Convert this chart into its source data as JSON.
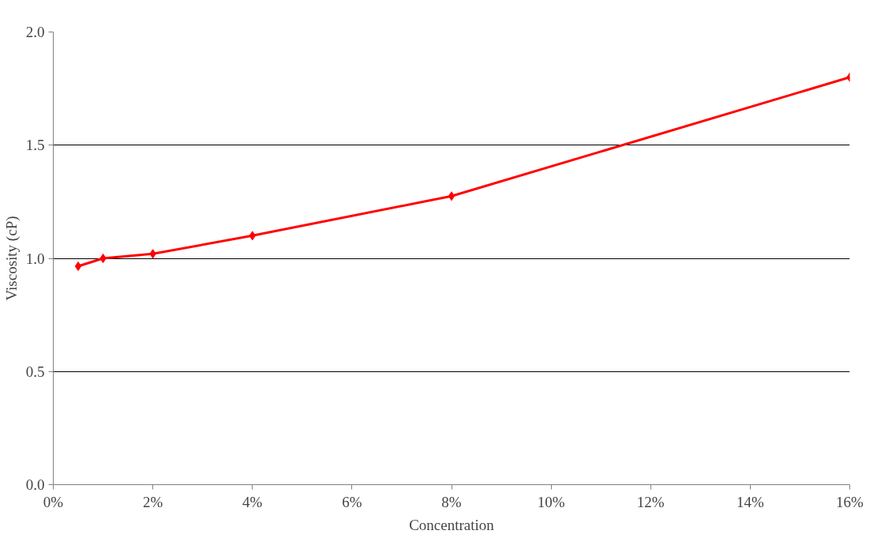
{
  "chart_data": {
    "type": "line",
    "xlabel": "Concentration",
    "ylabel": "Viscosity (cP)",
    "x": [
      0.5,
      1,
      2,
      4,
      8,
      16
    ],
    "series": [
      {
        "color": "#ff0000",
        "values": [
          0.965,
          1.0,
          1.02,
          1.1,
          1.275,
          1.8
        ]
      }
    ],
    "xlim": [
      0,
      16
    ],
    "ylim": [
      0,
      2
    ],
    "xticks": [
      {
        "value": 0,
        "label": "0%"
      },
      {
        "value": 2,
        "label": "2%"
      },
      {
        "value": 4,
        "label": "4%"
      },
      {
        "value": 6,
        "label": "6%"
      },
      {
        "value": 8,
        "label": "8%"
      },
      {
        "value": 10,
        "label": "10%"
      },
      {
        "value": 12,
        "label": "12%"
      },
      {
        "value": 14,
        "label": "14%"
      },
      {
        "value": 16,
        "label": "16%"
      }
    ],
    "yticks": [
      {
        "value": 0,
        "label": "0.0"
      },
      {
        "value": 0.5,
        "label": "0.5"
      },
      {
        "value": 1,
        "label": "1.0"
      },
      {
        "value": 1.5,
        "label": "1.5"
      },
      {
        "value": 2,
        "label": "2.0"
      }
    ],
    "grid": "y",
    "marker": "diamond",
    "line_style": "solid"
  }
}
